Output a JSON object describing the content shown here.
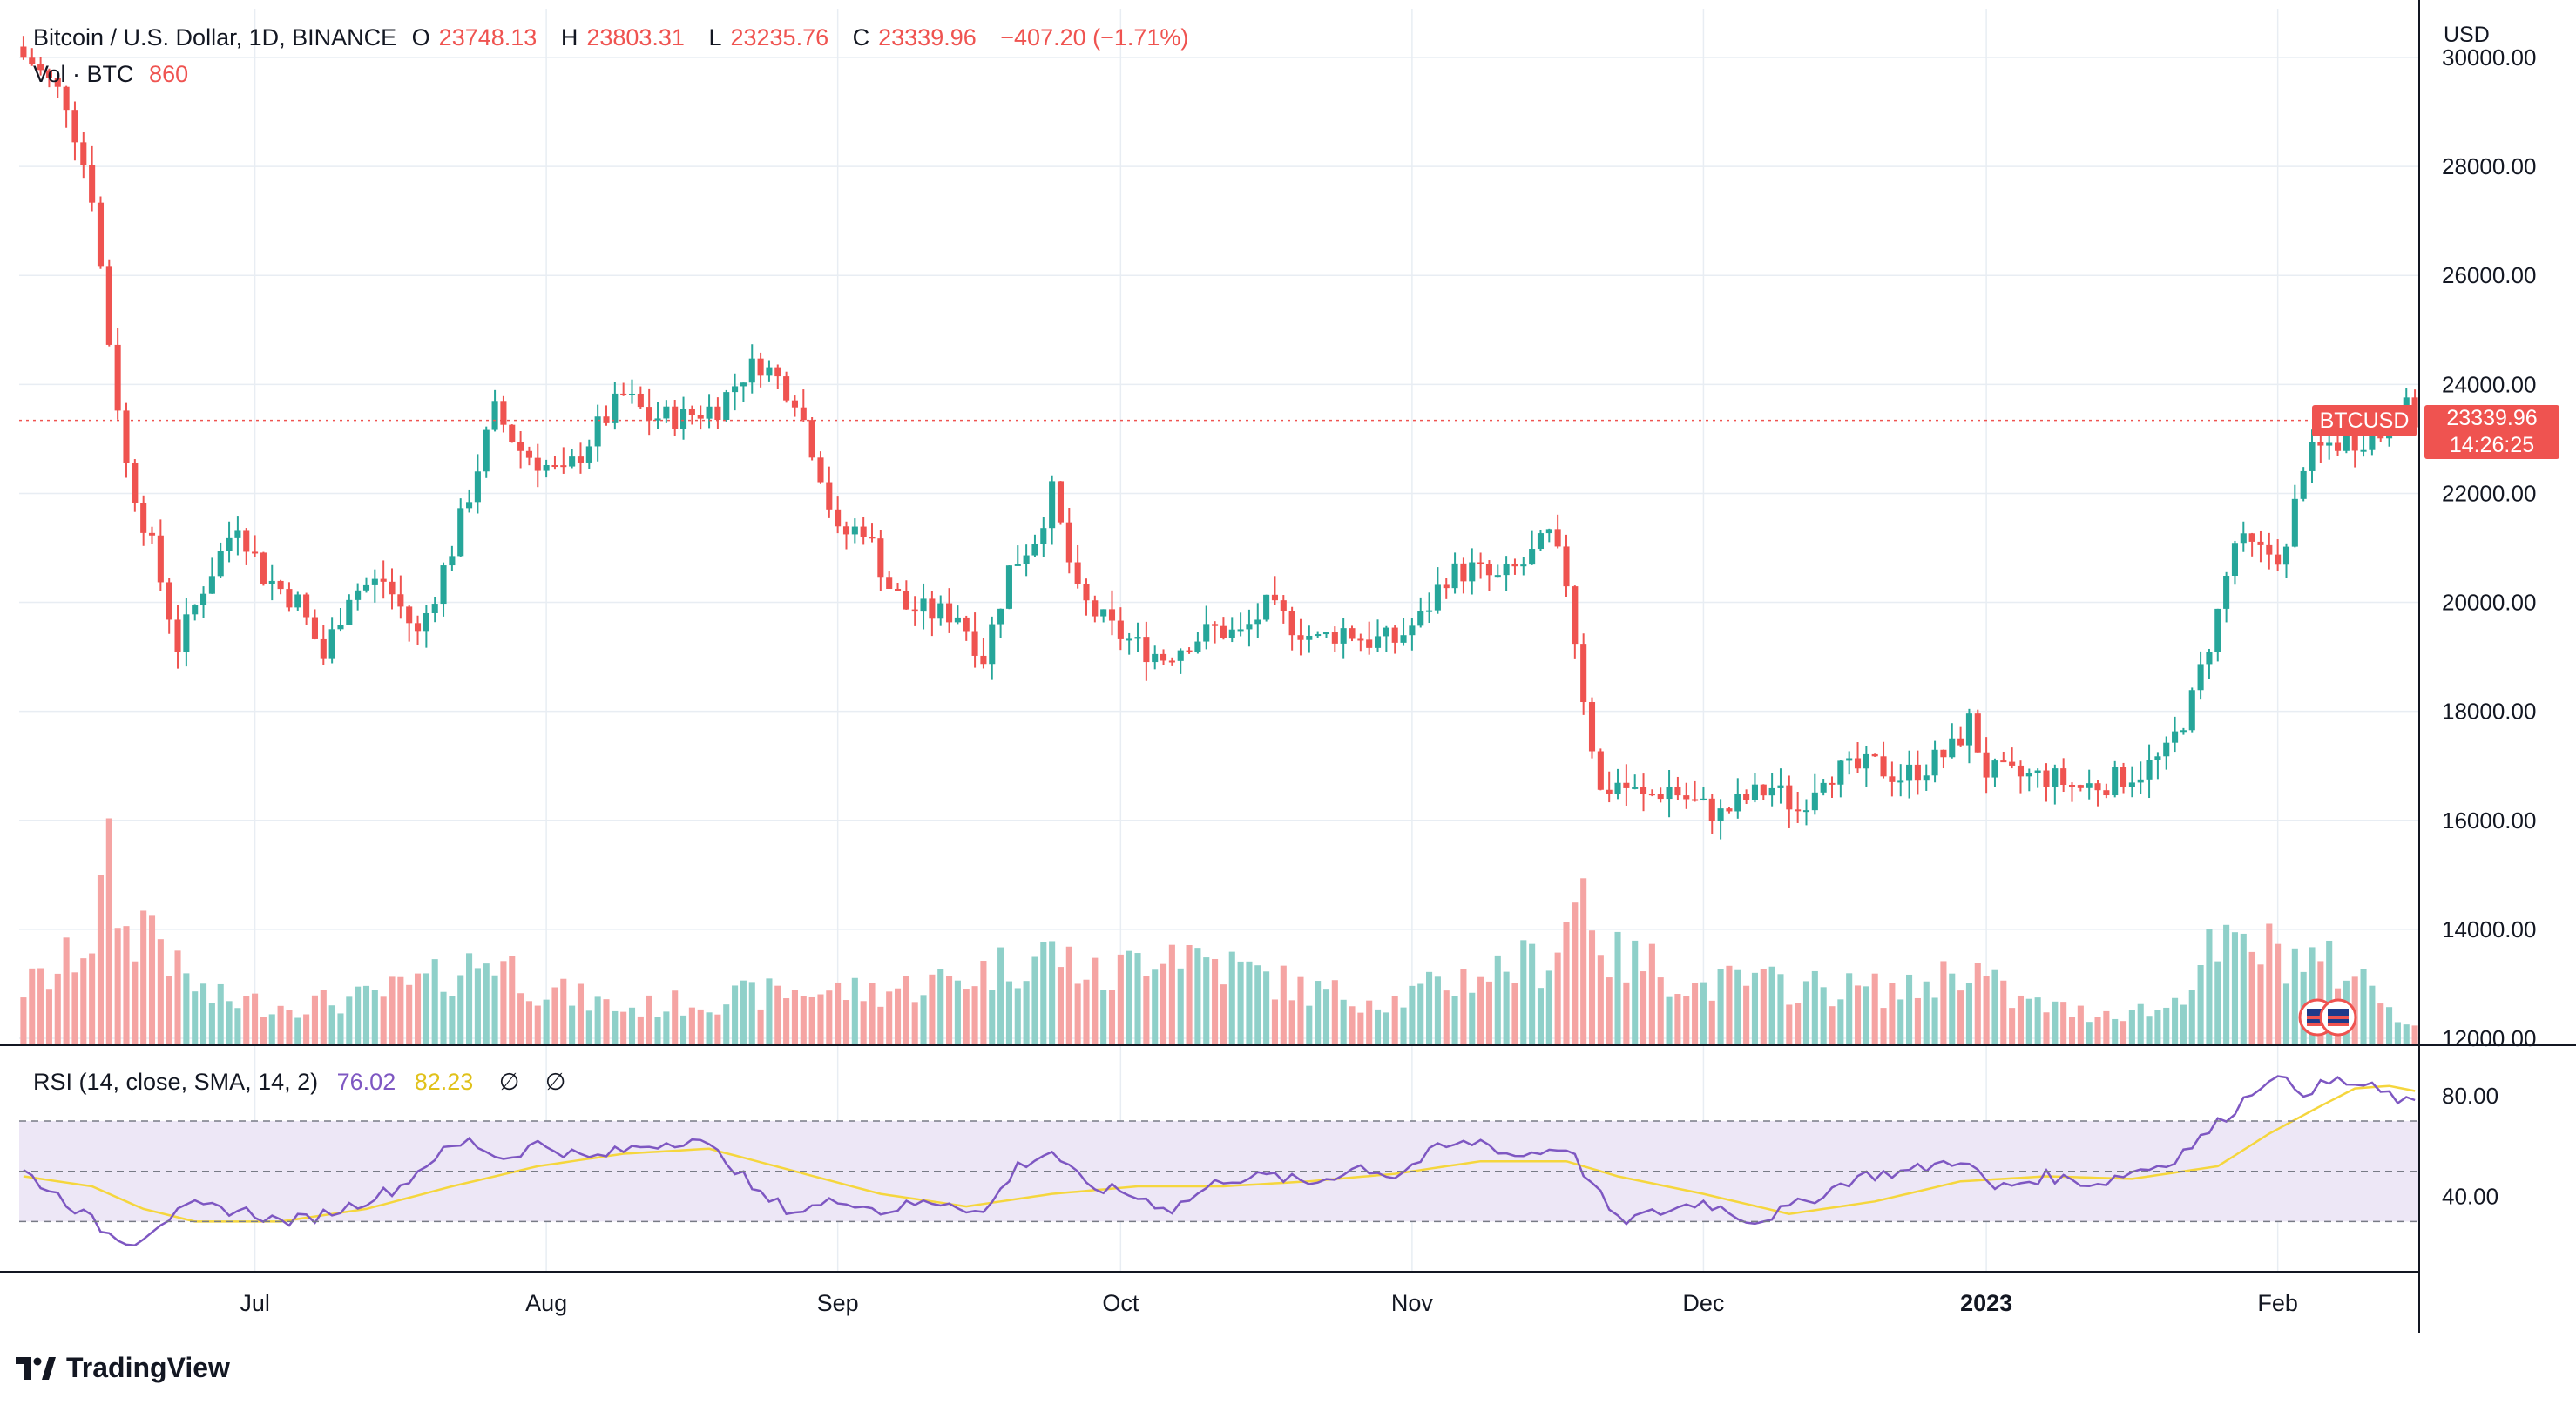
{
  "header": {
    "symbol": "Bitcoin / U.S. Dollar, 1D, BINANCE",
    "o_label": "O",
    "o_val": "23748.13",
    "h_label": "H",
    "h_val": "23803.31",
    "l_label": "L",
    "l_val": "23235.76",
    "c_label": "C",
    "c_val": "23339.96",
    "change": "−407.20 (−1.71%)",
    "vol_label": "Vol · BTC",
    "vol_val": "860"
  },
  "rsi_header": {
    "label": "RSI (14, close, SMA, 14, 2)",
    "rsi_val": "76.02",
    "sma_val": "82.23",
    "extra1": "∅",
    "extra2": "∅"
  },
  "price_tag": {
    "symbol": "BTCUSD",
    "price": "23339.96",
    "countdown": "14:26:25"
  },
  "brand": "TradingView",
  "colors": {
    "up": "#26a69a",
    "down": "#ef5350",
    "up_vol": "#8fd0c9",
    "down_vol": "#f5a4a3",
    "rsi": "#7e57c2",
    "rsi_sma": "#f5d63d",
    "rsi_band": "#ede7f6",
    "grid": "#e8edf3"
  },
  "chart_data": {
    "type": "candlestick",
    "currency_label": "USD",
    "y_ticks": [
      "30000.00",
      "28000.00",
      "26000.00",
      "24000.00",
      "22000.00",
      "20000.00",
      "18000.00",
      "16000.00",
      "14000.00",
      "12000.00"
    ],
    "ylim": [
      12000,
      30200
    ],
    "x_ticks": [
      "Jul",
      "Aug",
      "Sep",
      "Oct",
      "Nov",
      "Dec",
      "2023",
      "Feb"
    ],
    "last_price": 23339.96,
    "control_points": [
      [
        0,
        30000
      ],
      [
        1,
        29900
      ],
      [
        5,
        29200
      ],
      [
        8,
        27500
      ],
      [
        10,
        24800
      ],
      [
        12,
        22500
      ],
      [
        15,
        21000
      ],
      [
        18,
        19200
      ],
      [
        21,
        20300
      ],
      [
        25,
        21500
      ],
      [
        28,
        20500
      ],
      [
        32,
        20000
      ],
      [
        35,
        19000
      ],
      [
        38,
        20200
      ],
      [
        42,
        20400
      ],
      [
        46,
        19400
      ],
      [
        50,
        21000
      ],
      [
        55,
        23500
      ],
      [
        58,
        22800
      ],
      [
        63,
        22300
      ],
      [
        67,
        23200
      ],
      [
        70,
        23800
      ],
      [
        73,
        23400
      ],
      [
        77,
        23400
      ],
      [
        81,
        23600
      ],
      [
        84,
        24200
      ],
      [
        86,
        24400
      ],
      [
        90,
        23800
      ],
      [
        93,
        22400
      ],
      [
        95,
        21200
      ],
      [
        98,
        21400
      ],
      [
        101,
        20300
      ],
      [
        103,
        19900
      ],
      [
        106,
        19800
      ],
      [
        109,
        19800
      ],
      [
        112,
        19000
      ],
      [
        115,
        20600
      ],
      [
        118,
        21200
      ],
      [
        120,
        22000
      ],
      [
        123,
        20100
      ],
      [
        127,
        19500
      ],
      [
        130,
        19200
      ],
      [
        133,
        19000
      ],
      [
        136,
        19300
      ],
      [
        139,
        19500
      ],
      [
        142,
        19400
      ],
      [
        145,
        19900
      ],
      [
        148,
        19600
      ],
      [
        151,
        19300
      ],
      [
        154,
        19500
      ],
      [
        157,
        19300
      ],
      [
        160,
        19300
      ],
      [
        163,
        19700
      ],
      [
        166,
        20500
      ],
      [
        169,
        20600
      ],
      [
        172,
        20400
      ],
      [
        175,
        20700
      ],
      [
        178,
        21200
      ],
      [
        180,
        20400
      ],
      [
        182,
        18300
      ],
      [
        184,
        16500
      ],
      [
        186,
        16700
      ],
      [
        189,
        16400
      ],
      [
        192,
        16600
      ],
      [
        195,
        16300
      ],
      [
        198,
        16100
      ],
      [
        201,
        16400
      ],
      [
        204,
        16600
      ],
      [
        207,
        16200
      ],
      [
        210,
        16900
      ],
      [
        213,
        16900
      ],
      [
        216,
        17000
      ],
      [
        219,
        16800
      ],
      [
        222,
        17000
      ],
      [
        225,
        17300
      ],
      [
        227,
        17800
      ],
      [
        229,
        16900
      ],
      [
        232,
        16800
      ],
      [
        236,
        16800
      ],
      [
        240,
        16600
      ],
      [
        243,
        16700
      ],
      [
        247,
        16900
      ],
      [
        250,
        17200
      ],
      [
        253,
        18200
      ],
      [
        256,
        19800
      ],
      [
        258,
        21100
      ],
      [
        261,
        20900
      ],
      [
        264,
        20900
      ],
      [
        266,
        22600
      ],
      [
        269,
        22900
      ],
      [
        272,
        23000
      ],
      [
        275,
        23100
      ],
      [
        277,
        23700
      ],
      [
        279,
        23340
      ]
    ],
    "volume_shape": [
      [
        0,
        0.32
      ],
      [
        4,
        0.4
      ],
      [
        8,
        0.62
      ],
      [
        10,
        0.98
      ],
      [
        12,
        0.6
      ],
      [
        15,
        0.72
      ],
      [
        18,
        0.4
      ],
      [
        22,
        0.26
      ],
      [
        30,
        0.22
      ],
      [
        40,
        0.26
      ],
      [
        48,
        0.36
      ],
      [
        55,
        0.5
      ],
      [
        60,
        0.32
      ],
      [
        70,
        0.2
      ],
      [
        80,
        0.25
      ],
      [
        90,
        0.3
      ],
      [
        100,
        0.3
      ],
      [
        110,
        0.38
      ],
      [
        120,
        0.52
      ],
      [
        126,
        0.35
      ],
      [
        133,
        0.58
      ],
      [
        140,
        0.45
      ],
      [
        150,
        0.3
      ],
      [
        160,
        0.25
      ],
      [
        170,
        0.4
      ],
      [
        178,
        0.48
      ],
      [
        182,
        0.9
      ],
      [
        185,
        0.48
      ],
      [
        190,
        0.45
      ],
      [
        195,
        0.32
      ],
      [
        200,
        0.35
      ],
      [
        210,
        0.32
      ],
      [
        220,
        0.3
      ],
      [
        227,
        0.45
      ],
      [
        232,
        0.25
      ],
      [
        240,
        0.18
      ],
      [
        250,
        0.2
      ],
      [
        255,
        0.5
      ],
      [
        260,
        0.55
      ],
      [
        266,
        0.48
      ],
      [
        272,
        0.4
      ],
      [
        279,
        0.1
      ]
    ],
    "rsi_axis": [
      "80.00",
      "40.00"
    ],
    "rsi_levels": [
      70,
      50,
      30
    ],
    "rsi_shape": [
      [
        0,
        50
      ],
      [
        5,
        38
      ],
      [
        10,
        25
      ],
      [
        13,
        22
      ],
      [
        16,
        30
      ],
      [
        20,
        36
      ],
      [
        26,
        34
      ],
      [
        30,
        30
      ],
      [
        33,
        31
      ],
      [
        38,
        36
      ],
      [
        44,
        44
      ],
      [
        48,
        56
      ],
      [
        52,
        62
      ],
      [
        56,
        55
      ],
      [
        60,
        61
      ],
      [
        66,
        55
      ],
      [
        72,
        60
      ],
      [
        78,
        63
      ],
      [
        82,
        55
      ],
      [
        86,
        40
      ],
      [
        90,
        34
      ],
      [
        96,
        39
      ],
      [
        100,
        34
      ],
      [
        104,
        37
      ],
      [
        108,
        38
      ],
      [
        112,
        33
      ],
      [
        116,
        52
      ],
      [
        120,
        58
      ],
      [
        124,
        44
      ],
      [
        128,
        42
      ],
      [
        134,
        35
      ],
      [
        140,
        47
      ],
      [
        146,
        48
      ],
      [
        150,
        45
      ],
      [
        156,
        52
      ],
      [
        160,
        48
      ],
      [
        165,
        59
      ],
      [
        170,
        62
      ],
      [
        174,
        56
      ],
      [
        180,
        60
      ],
      [
        183,
        45
      ],
      [
        186,
        30
      ],
      [
        190,
        33
      ],
      [
        196,
        38
      ],
      [
        202,
        30
      ],
      [
        208,
        38
      ],
      [
        214,
        48
      ],
      [
        220,
        50
      ],
      [
        226,
        55
      ],
      [
        230,
        43
      ],
      [
        236,
        48
      ],
      [
        242,
        45
      ],
      [
        246,
        50
      ],
      [
        250,
        53
      ],
      [
        254,
        63
      ],
      [
        258,
        75
      ],
      [
        262,
        88
      ],
      [
        266,
        82
      ],
      [
        270,
        86
      ],
      [
        274,
        83
      ],
      [
        279,
        76
      ]
    ],
    "rsi_sma_shape": [
      [
        0,
        48
      ],
      [
        8,
        44
      ],
      [
        14,
        35
      ],
      [
        20,
        30
      ],
      [
        30,
        30
      ],
      [
        40,
        35
      ],
      [
        50,
        44
      ],
      [
        60,
        52
      ],
      [
        70,
        57
      ],
      [
        80,
        59
      ],
      [
        90,
        50
      ],
      [
        100,
        41
      ],
      [
        110,
        36
      ],
      [
        120,
        41
      ],
      [
        130,
        44
      ],
      [
        140,
        44
      ],
      [
        150,
        46
      ],
      [
        160,
        49
      ],
      [
        170,
        54
      ],
      [
        180,
        54
      ],
      [
        186,
        48
      ],
      [
        196,
        41
      ],
      [
        206,
        33
      ],
      [
        216,
        38
      ],
      [
        226,
        46
      ],
      [
        236,
        48
      ],
      [
        246,
        47
      ],
      [
        256,
        52
      ],
      [
        262,
        65
      ],
      [
        268,
        76
      ],
      [
        272,
        83
      ],
      [
        276,
        84
      ],
      [
        279,
        82
      ]
    ]
  }
}
